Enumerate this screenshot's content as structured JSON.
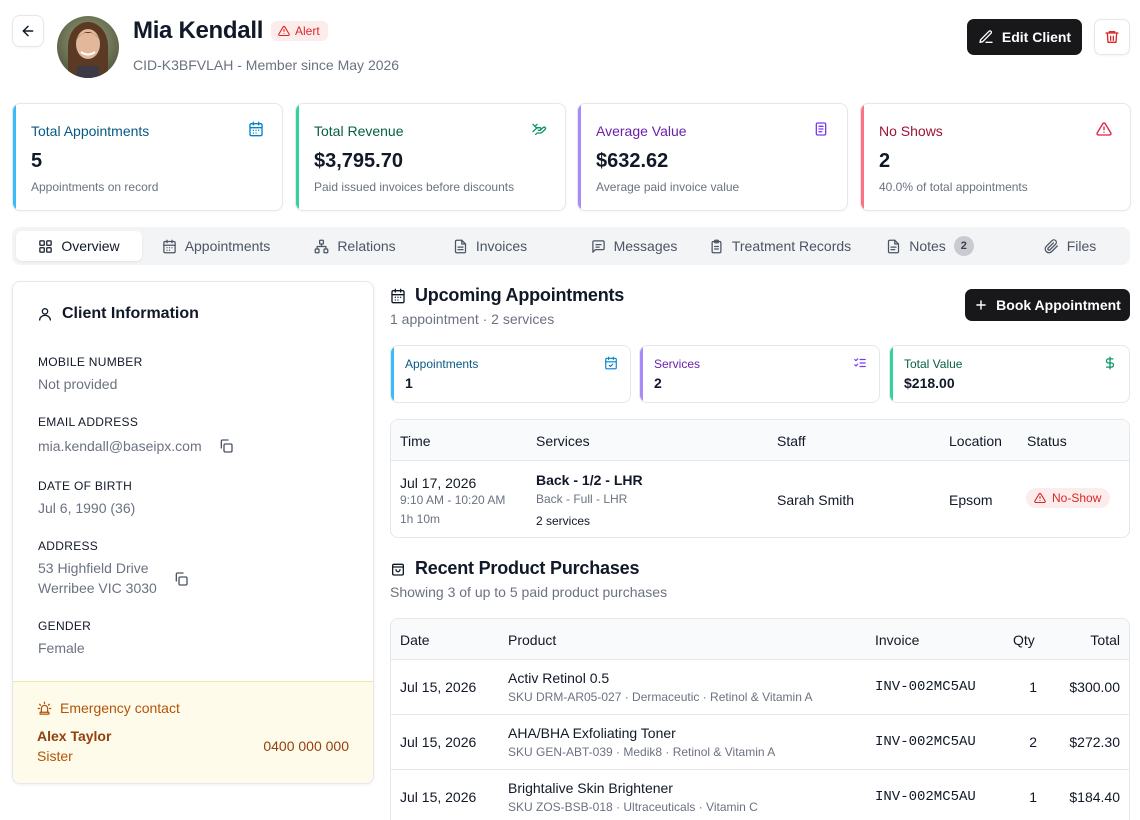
{
  "header": {
    "name": "Mia Kendall",
    "alert_label": "Alert",
    "subtitle": "CID-K3BFVLAH - Member since May 2026",
    "edit_label": "Edit Client"
  },
  "stats": [
    {
      "title": "Total Appointments",
      "value": "5",
      "desc": "Appointments on record",
      "color": "#0284c7",
      "icon": "calendar-icon"
    },
    {
      "title": "Total Revenue",
      "value": "$3,795.70",
      "desc": "Paid issued invoices before discounts",
      "color": "#059669",
      "icon": "money-hand-icon"
    },
    {
      "title": "Average Value",
      "value": "$632.62",
      "desc": "Average paid invoice value",
      "color": "#7c3aed",
      "icon": "receipt-icon"
    },
    {
      "title": "No Shows",
      "value": "2",
      "desc": "40.0% of total appointments",
      "color": "#e11d48",
      "icon": "warning-icon"
    }
  ],
  "tabs": [
    {
      "label": "Overview",
      "icon": "grid-icon",
      "active": true
    },
    {
      "label": "Appointments",
      "icon": "calendar-icon"
    },
    {
      "label": "Relations",
      "icon": "network-icon"
    },
    {
      "label": "Invoices",
      "icon": "document-icon"
    },
    {
      "label": "Messages",
      "icon": "message-icon"
    },
    {
      "label": "Treatment Records",
      "icon": "clipboard-icon"
    },
    {
      "label": "Notes",
      "icon": "note-icon",
      "count": "2"
    },
    {
      "label": "Files",
      "icon": "paperclip-icon"
    }
  ],
  "client_info": {
    "title": "Client Information",
    "mobile_label": "MOBILE NUMBER",
    "mobile_value": "Not provided",
    "email_label": "EMAIL ADDRESS",
    "email_value": "mia.kendall@baseipx.com",
    "dob_label": "DATE OF BIRTH",
    "dob_value": "Jul 6, 1990 (36)",
    "address_label": "ADDRESS",
    "address_line1": "53 Highfield Drive",
    "address_line2": "Werribee VIC 3030",
    "gender_label": "GENDER",
    "gender_value": "Female"
  },
  "emergency": {
    "title": "Emergency contact",
    "name": "Alex Taylor",
    "relation": "Sister",
    "phone": "0400 000 000"
  },
  "upcoming": {
    "title": "Upcoming Appointments",
    "subtitle": "1 appointment · 2 services",
    "book_label": "Book Appointment",
    "cards": [
      {
        "title": "Appointments",
        "value": "1",
        "color": "#0284c7"
      },
      {
        "title": "Services",
        "value": "2",
        "color": "#7c3aed"
      },
      {
        "title": "Total Value",
        "value": "$218.00",
        "color": "#059669"
      }
    ],
    "columns": [
      "Time",
      "Services",
      "Staff",
      "Location",
      "Status"
    ],
    "row": {
      "date": "Jul 17, 2026",
      "time": "9:10 AM - 10:20 AM",
      "duration": "1h 10m",
      "service_main": "Back - 1/2 - LHR",
      "service_sub": "Back - Full - LHR",
      "service_count": "2 services",
      "staff": "Sarah Smith",
      "location": "Epsom",
      "status": "No-Show"
    }
  },
  "purchases": {
    "title": "Recent Product Purchases",
    "subtitle": "Showing 3 of up to 5 paid product purchases",
    "columns": [
      "Date",
      "Product",
      "Invoice",
      "Qty",
      "Total"
    ],
    "rows": [
      {
        "date": "Jul 15, 2026",
        "product": "Activ Retinol 0.5",
        "meta": "SKU DRM-AR05-027 · Dermaceutic · Retinol & Vitamin A",
        "invoice": "INV-002MC5AU",
        "qty": "1",
        "total": "$300.00"
      },
      {
        "date": "Jul 15, 2026",
        "product": "AHA/BHA Exfoliating Toner",
        "meta": "SKU GEN-ABT-039 · Medik8 · Retinol & Vitamin A",
        "invoice": "INV-002MC5AU",
        "qty": "2",
        "total": "$272.30"
      },
      {
        "date": "Jul 15, 2026",
        "product": "Brightalive Skin Brightener",
        "meta": "SKU ZOS-BSB-018 · Ultraceuticals · Vitamin C",
        "invoice": "INV-002MC5AU",
        "qty": "1",
        "total": "$184.40"
      }
    ]
  }
}
